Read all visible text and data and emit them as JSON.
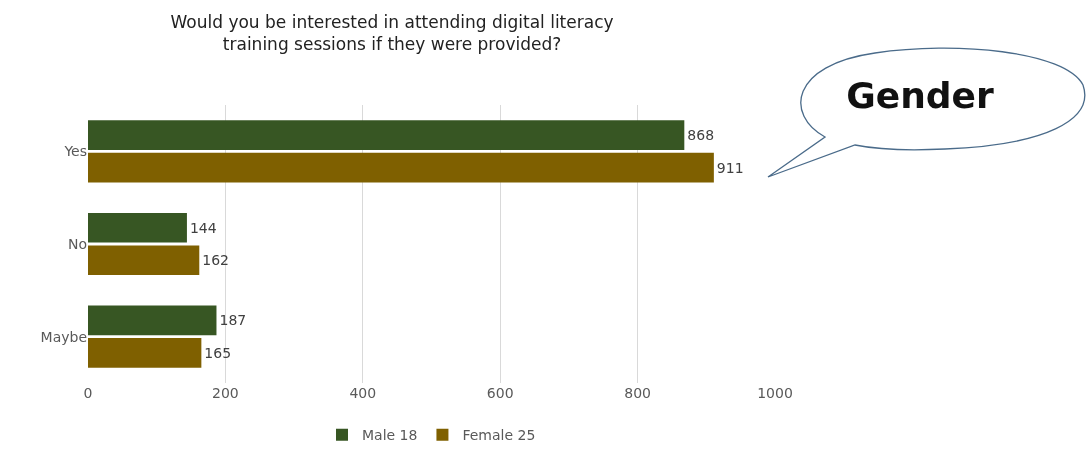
{
  "chart_data": {
    "type": "bar",
    "orientation": "horizontal",
    "title": "Would you be interested in attending digital literacy\ntraining sessions if they were provided?",
    "categories": [
      "Yes",
      "No",
      "Maybe"
    ],
    "series": [
      {
        "name": "Male 18",
        "color": "#375623",
        "values": [
          868,
          144,
          187
        ]
      },
      {
        "name": "Female 25",
        "color": "#7f6000",
        "values": [
          911,
          162,
          165
        ]
      }
    ],
    "xlim": [
      0,
      1000
    ],
    "xticks": [
      0,
      200,
      400,
      600,
      800,
      1000
    ],
    "grid": "x",
    "legend": "bottom",
    "data_labels": true,
    "annotations": [
      "Gender"
    ]
  }
}
